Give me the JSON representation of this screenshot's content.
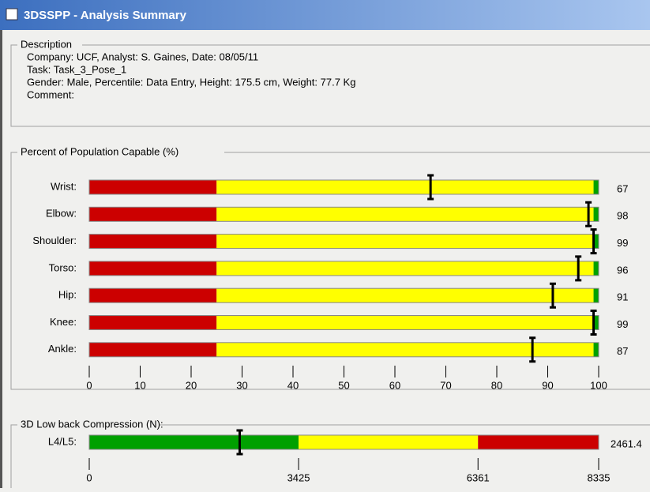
{
  "window": {
    "title": "3DSSPP - Analysis Summary"
  },
  "description": {
    "title": "Description",
    "lines": [
      "Company: UCF, Analyst: S. Gaines, Date: 08/05/11",
      "Task: Task_3_Pose_1",
      "Gender: Male, Percentile: Data Entry, Height: 175.5 cm, Weight: 77.7 Kg",
      "Comment:"
    ]
  },
  "chart_data": [
    {
      "type": "bar",
      "orientation": "horizontal",
      "title": "Percent of Population Capable (%)",
      "categories": [
        "Wrist:",
        "Elbow:",
        "Shoulder:",
        "Torso:",
        "Hip:",
        "Knee:",
        "Ankle:"
      ],
      "values": [
        67,
        98,
        99,
        96,
        91,
        99,
        87
      ],
      "xlim": [
        0,
        100
      ],
      "xticks": [
        0,
        10,
        20,
        30,
        40,
        50,
        60,
        70,
        80,
        90,
        100
      ],
      "zones": [
        {
          "from": 0,
          "to": 25,
          "color": "#cc0000"
        },
        {
          "from": 25,
          "to": 99,
          "color": "#ffff00"
        },
        {
          "from": 99,
          "to": 100,
          "color": "#00a000"
        }
      ]
    },
    {
      "type": "bar",
      "orientation": "horizontal",
      "title": "3D Low back Compression (N):",
      "categories": [
        "L4/L5:"
      ],
      "values": [
        2461.4
      ],
      "xlim": [
        0,
        8335
      ],
      "xticks": [
        0,
        3425,
        6361,
        8335
      ],
      "zones": [
        {
          "from": 0,
          "to": 3425,
          "color": "#00a000"
        },
        {
          "from": 3425,
          "to": 6361,
          "color": "#ffff00"
        },
        {
          "from": 6361,
          "to": 8335,
          "color": "#cc0000"
        }
      ]
    }
  ]
}
